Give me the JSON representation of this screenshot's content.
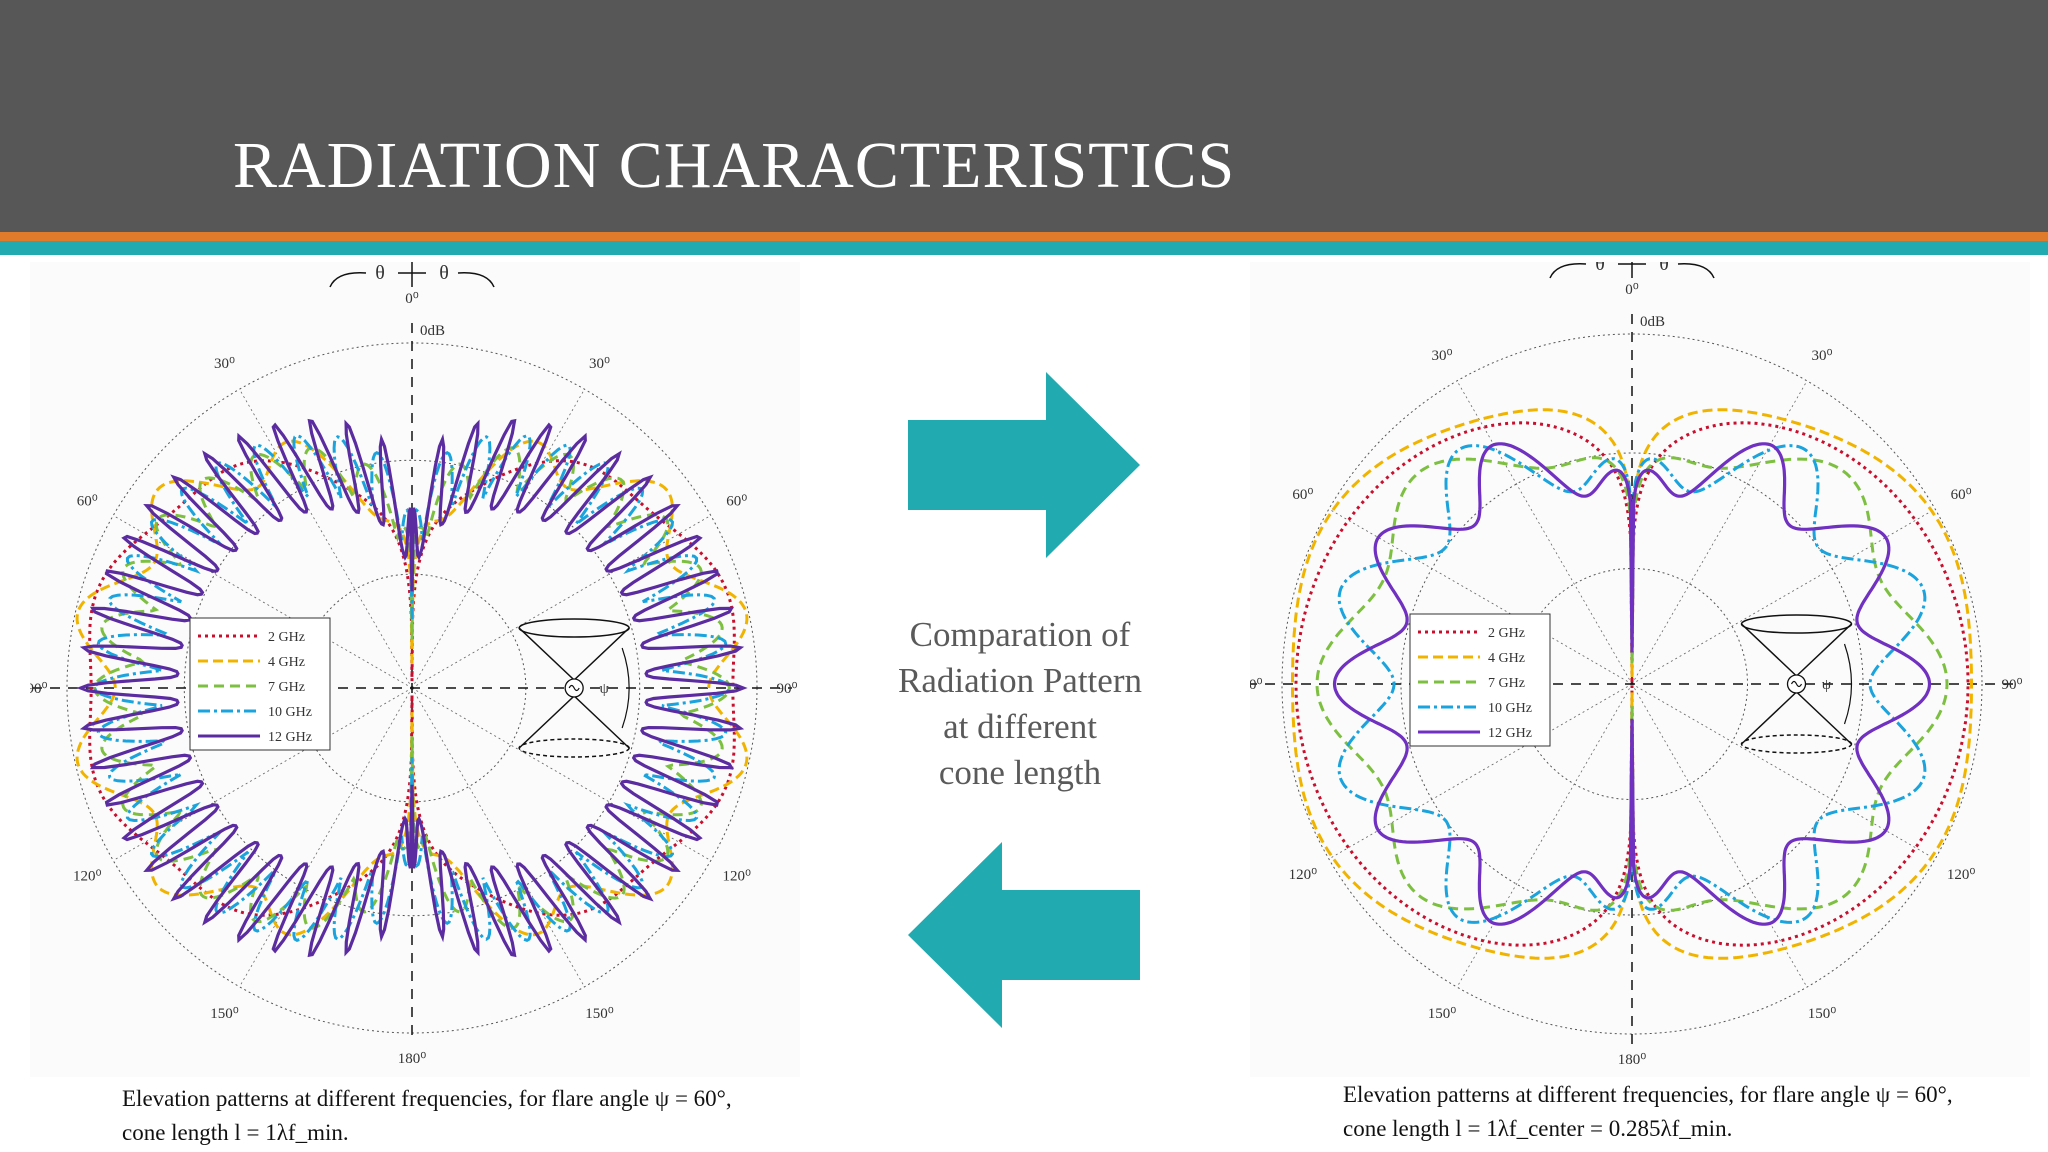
{
  "slide": {
    "title": "RADIATION CHARACTERISTICS",
    "center_text": [
      "Comparation of",
      "Radiation Pattern",
      "at different",
      "cone length"
    ],
    "colors": {
      "header": "#575757",
      "accent_orange": "#e07b2c",
      "accent_teal": "#21aab0",
      "arrow": "#21aab0"
    }
  },
  "polar_common": {
    "theta_symbol": "θ",
    "db_label": "0dB",
    "angle_labels_left": [
      "30⁰",
      "60⁰",
      "90⁰",
      "120⁰",
      "150⁰"
    ],
    "angle_labels_right": [
      "30⁰",
      "60⁰",
      "90⁰",
      "120⁰",
      "150⁰"
    ],
    "zero_label": "0⁰",
    "bottom_label": "180⁰",
    "psi_label": "ψ"
  },
  "left_plot": {
    "legend": [
      {
        "label": "2 GHz",
        "color": "#c8102e",
        "dash": "3,4"
      },
      {
        "label": "4 GHz",
        "color": "#f0b400",
        "dash": "10,5"
      },
      {
        "label": "7 GHz",
        "color": "#7dbf40",
        "dash": "10,6"
      },
      {
        "label": "10 GHz",
        "color": "#1aa3dc",
        "dash": "12,4,3,4"
      },
      {
        "label": "12 GHz",
        "color": "#5b2ca0",
        "dash": ""
      }
    ],
    "caption_line1": "Elevation patterns at different frequencies, for flare angle ψ = 60°,",
    "caption_line2": "cone length l = 1λf_min."
  },
  "right_plot": {
    "legend": [
      {
        "label": "2 GHz",
        "color": "#c8102e",
        "dash": "3,4"
      },
      {
        "label": "4 GHz",
        "color": "#f0b400",
        "dash": "10,5"
      },
      {
        "label": "7 GHz",
        "color": "#7dbf40",
        "dash": "10,6"
      },
      {
        "label": "10 GHz",
        "color": "#1aa3dc",
        "dash": "12,4,3,4"
      },
      {
        "label": "12 GHz",
        "color": "#7030c0",
        "dash": ""
      }
    ],
    "caption_line1": "Elevation patterns at different frequencies, for flare angle ψ = 60°,",
    "caption_line2": "cone length l = 1λf_center = 0.285λf_min."
  }
}
